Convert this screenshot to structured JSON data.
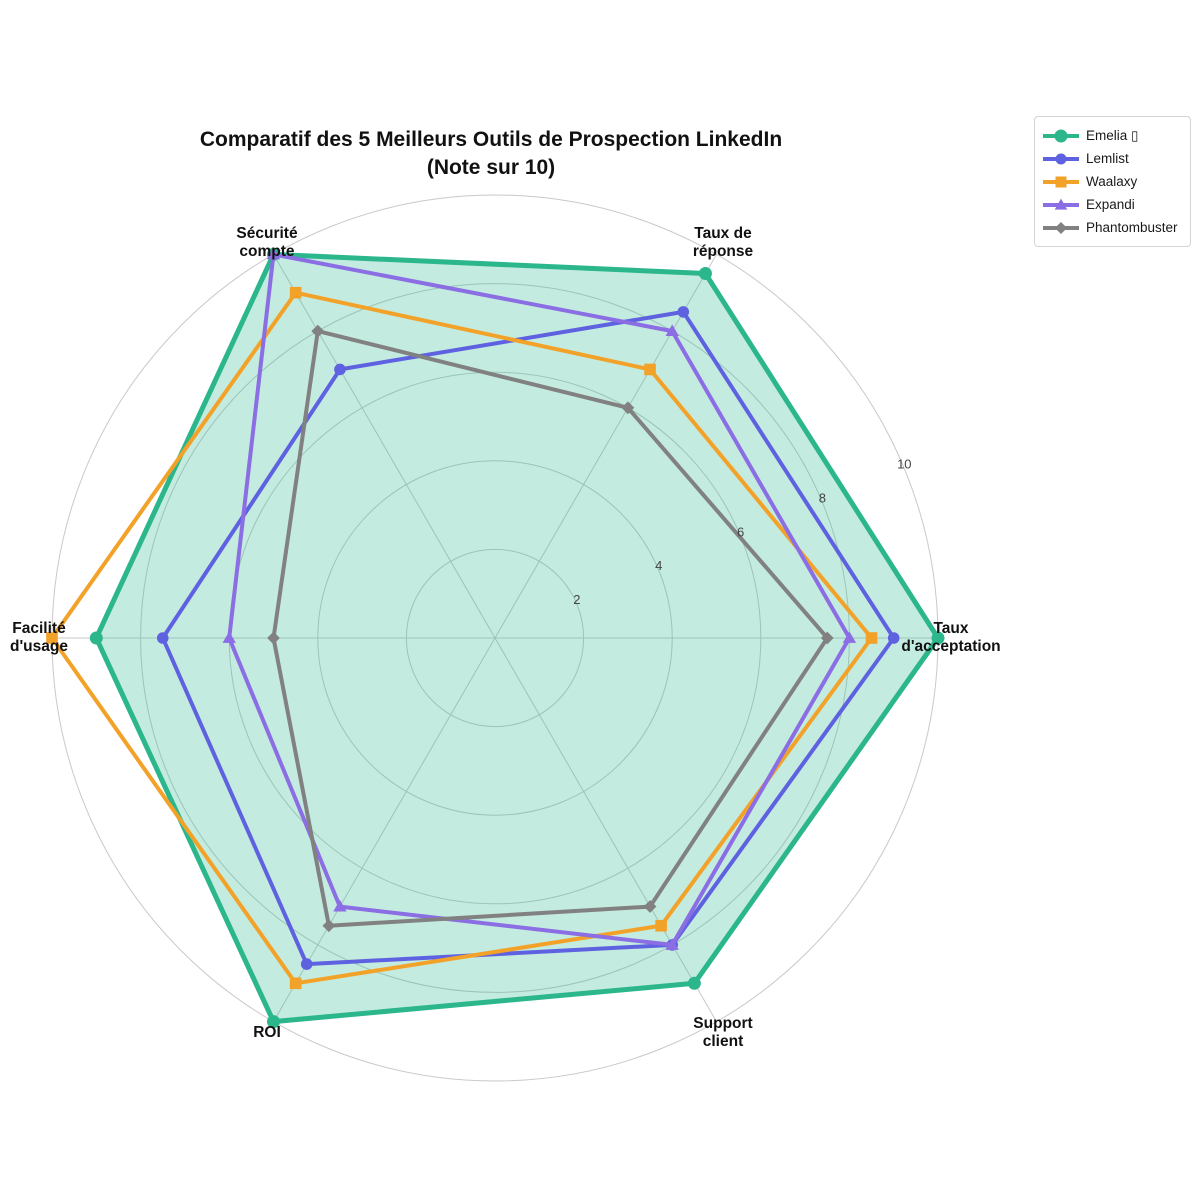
{
  "title": {
    "line1": "Comparatif des 5 Meilleurs Outils de Prospection LinkedIn",
    "line2": "(Note sur 10)"
  },
  "chart_data": {
    "type": "radar",
    "title": "Comparatif des 5 Meilleurs Outils de Prospection LinkedIn (Note sur 10)",
    "rrange": [
      0,
      10
    ],
    "rticks": [
      2,
      4,
      6,
      8,
      10
    ],
    "rmax": 10,
    "grid": "circular",
    "tick_label_angle_deg": 22.5,
    "legend_position": "top-right",
    "categories": [
      "Taux d'acceptation",
      "Taux de réponse",
      "Sécurité compte",
      "Facilité d'usage",
      "ROI",
      "Support client"
    ],
    "category_label_lines": [
      [
        "Taux",
        "d'acceptation"
      ],
      [
        "Taux de",
        "réponse"
      ],
      [
        "Sécurité",
        "compte"
      ],
      [
        "Facilité",
        "d'usage"
      ],
      [
        "ROI"
      ],
      [
        "Support",
        "client"
      ]
    ],
    "axis_angles_deg": [
      0,
      60,
      120,
      180,
      240,
      300
    ],
    "grid_color": "#c9c9c9",
    "series": [
      {
        "name": "Emelia ▯",
        "color": "#2cb68c",
        "marker": "circle",
        "fill": "rgba(44,182,140,0.28)",
        "values": [
          10,
          9.5,
          10,
          9,
          10,
          9
        ]
      },
      {
        "name": "Lemlist",
        "color": "#5e62e0",
        "marker": "circle",
        "fill": null,
        "values": [
          9,
          8.5,
          7,
          7.5,
          8.5,
          8
        ]
      },
      {
        "name": "Waalaxy",
        "color": "#f3a229",
        "marker": "square",
        "fill": null,
        "values": [
          8.5,
          7,
          9,
          10,
          9,
          7.5
        ]
      },
      {
        "name": "Expandi",
        "color": "#8b6de4",
        "marker": "triangle",
        "fill": null,
        "values": [
          8,
          8,
          10,
          6,
          7,
          8
        ]
      },
      {
        "name": "Phantombuster",
        "color": "#818181",
        "marker": "diamond",
        "fill": null,
        "values": [
          7.5,
          6,
          8,
          5,
          7.5,
          7
        ]
      }
    ]
  }
}
